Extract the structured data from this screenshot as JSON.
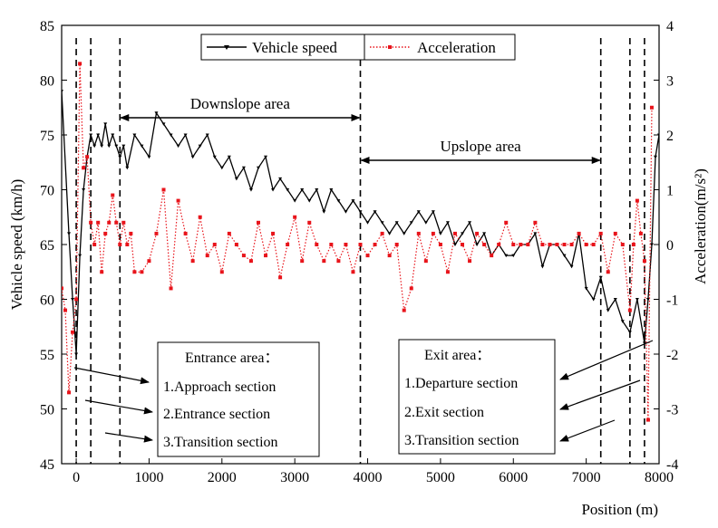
{
  "chart_data": {
    "type": "line",
    "title": "",
    "xlabel": "Position (m)",
    "ylabel_left": "Vehicle speed (km/h)",
    "ylabel_right": "Acceleration(m/s²)",
    "xlim": [
      -200,
      8000
    ],
    "ylim_left": [
      45,
      85
    ],
    "ylim_right": [
      -4,
      4
    ],
    "x_ticks": [
      0,
      1000,
      2000,
      3000,
      4000,
      5000,
      6000,
      7000,
      8000
    ],
    "y_left_ticks": [
      45,
      50,
      55,
      60,
      65,
      70,
      75,
      80,
      85
    ],
    "y_right_ticks": [
      -4,
      -3,
      -2,
      -1,
      0,
      1,
      2,
      3,
      4
    ],
    "legend": [
      {
        "name": "Vehicle speed",
        "color": "#000000",
        "style": "solid"
      },
      {
        "name": "Acceleration",
        "color": "#e8141b",
        "style": "dotted"
      }
    ],
    "series": [
      {
        "name": "Vehicle speed",
        "axis": "left",
        "color": "#000000",
        "x": [
          -200,
          -100,
          -50,
          0,
          50,
          100,
          150,
          200,
          250,
          300,
          350,
          400,
          450,
          500,
          550,
          600,
          650,
          700,
          800,
          900,
          1000,
          1100,
          1200,
          1300,
          1400,
          1500,
          1600,
          1700,
          1800,
          1900,
          2000,
          2100,
          2200,
          2300,
          2400,
          2500,
          2600,
          2700,
          2800,
          2900,
          3000,
          3100,
          3200,
          3300,
          3400,
          3500,
          3600,
          3700,
          3800,
          3900,
          4000,
          4100,
          4200,
          4300,
          4400,
          4500,
          4600,
          4700,
          4800,
          4900,
          5000,
          5100,
          5200,
          5300,
          5400,
          5500,
          5600,
          5700,
          5800,
          5900,
          6000,
          6100,
          6200,
          6300,
          6400,
          6500,
          6600,
          6700,
          6800,
          6900,
          7000,
          7100,
          7200,
          7300,
          7400,
          7500,
          7600,
          7700,
          7800,
          7850,
          7900,
          7950,
          8000
        ],
        "values": [
          79,
          66,
          60,
          55,
          64,
          70,
          73,
          75,
          74,
          75,
          74,
          76,
          74,
          75,
          74,
          73,
          74,
          72,
          75,
          74,
          73,
          77,
          76,
          75,
          74,
          75,
          73,
          74,
          75,
          73,
          72,
          73,
          71,
          72,
          70,
          72,
          73,
          70,
          71,
          70,
          69,
          70,
          69,
          70,
          68,
          70,
          69,
          68,
          69,
          68,
          67,
          68,
          67,
          66,
          67,
          66,
          67,
          68,
          67,
          68,
          66,
          67,
          65,
          66,
          67,
          65,
          66,
          64,
          65,
          64,
          64,
          65,
          65,
          66,
          63,
          65,
          65,
          64,
          63,
          66,
          61,
          60,
          62,
          59,
          60,
          58,
          57,
          60,
          56,
          60,
          65,
          73,
          75
        ]
      },
      {
        "name": "Acceleration",
        "axis": "right",
        "color": "#e8141b",
        "x": [
          -200,
          -150,
          -100,
          -50,
          0,
          50,
          100,
          150,
          200,
          250,
          300,
          350,
          400,
          450,
          500,
          550,
          600,
          650,
          700,
          750,
          800,
          900,
          1000,
          1100,
          1200,
          1300,
          1400,
          1500,
          1600,
          1700,
          1800,
          1900,
          2000,
          2100,
          2200,
          2300,
          2400,
          2500,
          2600,
          2700,
          2800,
          2900,
          3000,
          3100,
          3200,
          3300,
          3400,
          3500,
          3600,
          3700,
          3800,
          3900,
          4000,
          4100,
          4200,
          4300,
          4400,
          4500,
          4600,
          4700,
          4800,
          4900,
          5000,
          5100,
          5200,
          5300,
          5400,
          5500,
          5600,
          5700,
          5800,
          5900,
          6000,
          6100,
          6200,
          6300,
          6400,
          6500,
          6600,
          6700,
          6800,
          6900,
          7000,
          7100,
          7200,
          7300,
          7400,
          7500,
          7600,
          7650,
          7700,
          7750,
          7800,
          7850,
          7900
        ],
        "values": [
          -0.8,
          -1.2,
          -2.7,
          -1.6,
          -1.0,
          3.3,
          1.4,
          1.6,
          0.4,
          0,
          0.4,
          -0.5,
          0.2,
          0.4,
          0.9,
          0.4,
          0,
          0.4,
          0,
          0.2,
          -0.5,
          -0.5,
          -0.3,
          0.2,
          1.0,
          -0.8,
          0.8,
          0.2,
          -0.3,
          0.5,
          -0.2,
          0,
          -0.5,
          0.2,
          0,
          -0.2,
          -0.3,
          0.4,
          -0.2,
          0.2,
          -0.6,
          0,
          0.5,
          -0.3,
          0.4,
          0,
          -0.3,
          0,
          -0.3,
          0,
          -0.5,
          0,
          -0.2,
          0,
          0.2,
          -0.2,
          0,
          -1.2,
          -0.8,
          0.2,
          -0.3,
          0.2,
          0,
          -0.5,
          0.2,
          0,
          -0.3,
          0.2,
          0,
          -0.2,
          0,
          0.4,
          0,
          0,
          0,
          0.4,
          0,
          0,
          0,
          0,
          0,
          0.2,
          0,
          0,
          0.2,
          -0.5,
          0.2,
          0,
          -1.2,
          0,
          0.8,
          0.2,
          -0.3,
          -3.2,
          2.5
        ]
      }
    ],
    "vertical_dashed_lines_at_x": [
      0,
      200,
      600,
      3900,
      7200,
      7600,
      7800
    ],
    "annotations": [
      {
        "id": "downslope",
        "text": "Downslope area",
        "from_x": 600,
        "to_x": 3900
      },
      {
        "id": "upslope",
        "text": "Upslope area",
        "from_x": 3900,
        "to_x": 7200
      }
    ],
    "entrance_box": {
      "title": "Entrance area：",
      "items": [
        "1.Approach section",
        "2.Entrance section",
        "3.Transition section"
      ]
    },
    "exit_box": {
      "title": "Exit area：",
      "items": [
        "1.Departure section",
        "2.Exit section",
        "3.Transition section"
      ]
    }
  }
}
